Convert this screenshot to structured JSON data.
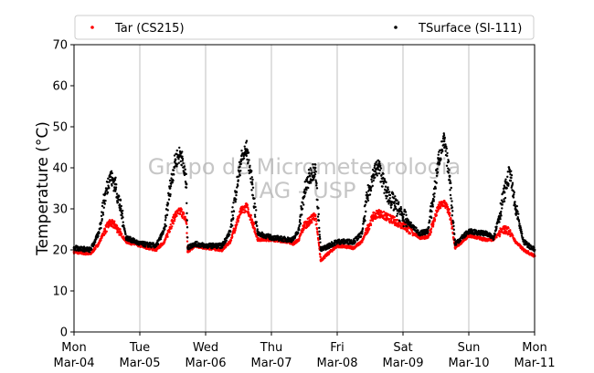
{
  "chart_data": {
    "type": "scatter",
    "title": "",
    "xlabel": "",
    "ylabel": "Temperature (°C)",
    "ylim": [
      0,
      70
    ],
    "xlim": [
      "2019-03-04T00:00",
      "2019-03-11T00:00"
    ],
    "yticks": [
      0,
      10,
      20,
      30,
      40,
      50,
      60,
      70
    ],
    "xticks": [
      {
        "day": "Mon",
        "date": "Mar-04"
      },
      {
        "day": "Tue",
        "date": "Mar-05"
      },
      {
        "day": "Wed",
        "date": "Mar-06"
      },
      {
        "day": "Thu",
        "date": "Mar-07"
      },
      {
        "day": "Fri",
        "date": "Mar-08"
      },
      {
        "day": "Sat",
        "date": "Mar-09"
      },
      {
        "day": "Sun",
        "date": "Mar-10"
      },
      {
        "day": "Mon",
        "date": "Mar-11"
      }
    ],
    "grid": "vertical",
    "legend_position": "top",
    "watermark": [
      "Grupo de Micrometeorologia",
      "IAG - USP"
    ],
    "series": [
      {
        "name": "Tar (CS215)",
        "color": "#ff0000",
        "x": [
          "2019-03-04T00:00",
          "2019-03-04T06:00",
          "2019-03-04T09:00",
          "2019-03-04T11:00",
          "2019-03-04T13:00",
          "2019-03-04T15:00",
          "2019-03-04T17:00",
          "2019-03-04T19:00",
          "2019-03-05T00:00",
          "2019-03-05T06:00",
          "2019-03-05T09:00",
          "2019-03-05T11:00",
          "2019-03-05T13:00",
          "2019-03-05T15:00",
          "2019-03-05T17:00",
          "2019-03-05T17:30",
          "2019-03-05T20:00",
          "2019-03-06T00:00",
          "2019-03-06T06:00",
          "2019-03-06T09:00",
          "2019-03-06T11:00",
          "2019-03-06T13:00",
          "2019-03-06T15:00",
          "2019-03-06T17:00",
          "2019-03-06T19:00",
          "2019-03-07T00:00",
          "2019-03-07T06:00",
          "2019-03-07T08:00",
          "2019-03-07T10:00",
          "2019-03-07T12:00",
          "2019-03-07T14:00",
          "2019-03-07T16:00",
          "2019-03-07T18:00",
          "2019-03-08T00:00",
          "2019-03-08T06:00",
          "2019-03-08T09:00",
          "2019-03-08T11:00",
          "2019-03-08T13:00",
          "2019-03-08T15:00",
          "2019-03-08T18:00",
          "2019-03-09T00:00",
          "2019-03-09T06:00",
          "2019-03-09T09:00",
          "2019-03-09T11:00",
          "2019-03-09T13:00",
          "2019-03-09T15:00",
          "2019-03-09T17:00",
          "2019-03-09T19:00",
          "2019-03-10T00:00",
          "2019-03-10T06:00",
          "2019-03-10T09:00",
          "2019-03-10T11:00",
          "2019-03-10T13:00",
          "2019-03-10T15:00",
          "2019-03-10T17:00",
          "2019-03-10T20:00",
          "2019-03-11T00:00"
        ],
        "y": [
          19.5,
          19.0,
          21.5,
          24.5,
          26.5,
          26.0,
          24.0,
          22.0,
          21.0,
          20.0,
          22.0,
          25.5,
          28.5,
          29.5,
          27.0,
          19.5,
          21.0,
          20.5,
          20.0,
          22.0,
          26.0,
          29.5,
          30.5,
          27.0,
          22.5,
          22.5,
          22.0,
          21.5,
          22.5,
          26.0,
          27.0,
          28.5,
          17.5,
          21.0,
          20.5,
          22.0,
          25.0,
          28.0,
          29.0,
          28.0,
          26.0,
          23.0,
          23.0,
          26.5,
          30.5,
          31.5,
          29.0,
          20.5,
          23.5,
          22.5,
          22.5,
          24.0,
          25.0,
          24.5,
          22.0,
          20.0,
          18.5
        ]
      },
      {
        "name": "TSurface (SI-111)",
        "color": "#000000",
        "x": [
          "2019-03-04T00:00",
          "2019-03-04T06:00",
          "2019-03-04T09:00",
          "2019-03-04T11:00",
          "2019-03-04T13:00",
          "2019-03-04T15:00",
          "2019-03-04T17:00",
          "2019-03-04T19:00",
          "2019-03-05T00:00",
          "2019-03-05T06:00",
          "2019-03-05T09:00",
          "2019-03-05T11:00",
          "2019-03-05T13:00",
          "2019-03-05T15:00",
          "2019-03-05T17:00",
          "2019-03-05T17:30",
          "2019-03-05T20:00",
          "2019-03-06T00:00",
          "2019-03-06T06:00",
          "2019-03-06T09:00",
          "2019-03-06T11:00",
          "2019-03-06T13:00",
          "2019-03-06T15:00",
          "2019-03-06T17:00",
          "2019-03-06T19:00",
          "2019-03-07T00:00",
          "2019-03-07T06:00",
          "2019-03-07T08:00",
          "2019-03-07T10:00",
          "2019-03-07T12:00",
          "2019-03-07T14:00",
          "2019-03-07T16:00",
          "2019-03-07T18:00",
          "2019-03-08T00:00",
          "2019-03-08T06:00",
          "2019-03-08T09:00",
          "2019-03-08T11:00",
          "2019-03-08T13:00",
          "2019-03-08T15:00",
          "2019-03-08T18:00",
          "2019-03-09T00:00",
          "2019-03-09T06:00",
          "2019-03-09T09:00",
          "2019-03-09T11:00",
          "2019-03-09T13:00",
          "2019-03-09T15:00",
          "2019-03-09T17:00",
          "2019-03-09T19:00",
          "2019-03-10T00:00",
          "2019-03-10T06:00",
          "2019-03-10T09:00",
          "2019-03-10T11:00",
          "2019-03-10T13:00",
          "2019-03-10T15:00",
          "2019-03-10T17:00",
          "2019-03-10T20:00",
          "2019-03-11T00:00"
        ],
        "y": [
          20.5,
          20.0,
          24.0,
          32.0,
          38.0,
          36.0,
          30.0,
          23.0,
          21.5,
          21.0,
          25.0,
          35.0,
          42.0,
          43.5,
          36.0,
          20.5,
          21.5,
          21.0,
          21.0,
          24.5,
          34.0,
          42.0,
          44.5,
          36.0,
          24.0,
          23.0,
          22.5,
          22.5,
          25.0,
          34.0,
          38.0,
          40.0,
          20.0,
          22.0,
          22.0,
          24.0,
          33.0,
          38.0,
          40.5,
          34.0,
          28.0,
          24.0,
          24.5,
          32.0,
          42.0,
          46.5,
          38.0,
          21.5,
          24.5,
          24.0,
          23.0,
          28.0,
          34.0,
          39.0,
          30.0,
          22.0,
          20.0
        ]
      }
    ]
  }
}
